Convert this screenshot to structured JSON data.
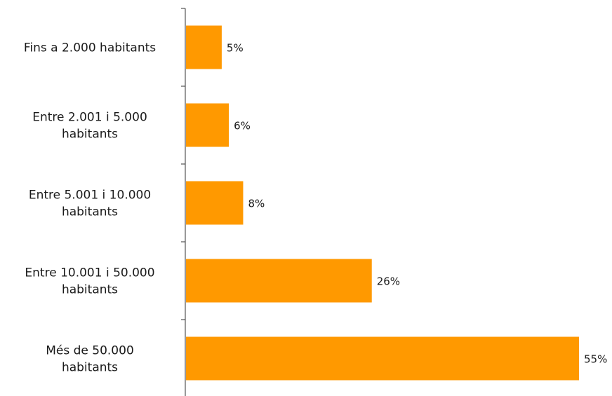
{
  "chart_data": {
    "type": "bar",
    "orientation": "horizontal",
    "categories": [
      [
        "Fins a 2.000 habitants"
      ],
      [
        "Entre 2.001 i 5.000",
        "habitants"
      ],
      [
        "Entre 5.001 i 10.000",
        "habitants"
      ],
      [
        "Entre 10.001 i 50.000",
        "habitants"
      ],
      [
        "Més de 50.000",
        "habitants"
      ]
    ],
    "values": [
      5,
      6,
      8,
      26,
      55
    ],
    "value_labels": [
      "5%",
      "6%",
      "8%",
      "26%",
      "55%"
    ],
    "unit": "%",
    "title": "",
    "xlabel": "",
    "ylabel": "",
    "xlim": [
      0,
      55
    ],
    "grid": false,
    "legend": "none",
    "bar_color": "#FF9900",
    "axis_color": "#333333"
  }
}
